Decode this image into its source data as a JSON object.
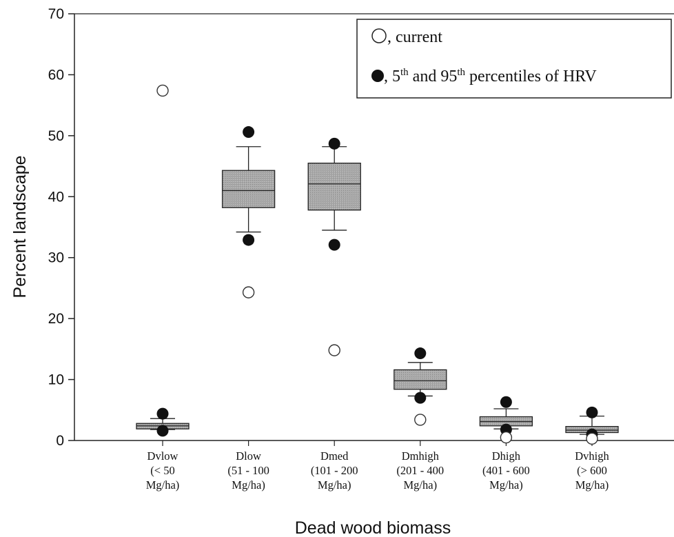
{
  "chart_data": {
    "type": "box",
    "ylabel": "Percent landscape",
    "xlabel": "Dead wood biomass",
    "ylim": [
      0,
      70
    ],
    "yticks": [
      0,
      10,
      20,
      30,
      40,
      50,
      60,
      70
    ],
    "grid": false,
    "legend_position": "top-right",
    "legend": {
      "current": {
        "prefix": ", ",
        "text": "current"
      },
      "hrv": {
        "prefix": ", 5",
        "sup1": "th",
        "mid": " and 95",
        "sup2": "th",
        "suffix": " percentiles of HRV"
      }
    },
    "categories": [
      {
        "name": "Dvlow",
        "range": "(< 50",
        "unit": "Mg/ha)"
      },
      {
        "name": "Dlow",
        "range": "(51 - 100",
        "unit": "Mg/ha)"
      },
      {
        "name": "Dmed",
        "range": "(101 - 200",
        "unit": "Mg/ha)"
      },
      {
        "name": "Dmhigh",
        "range": "(201 - 400",
        "unit": "Mg/ha)"
      },
      {
        "name": "Dhigh",
        "range": "(401 - 600",
        "unit": "Mg/ha)"
      },
      {
        "name": "Dvhigh",
        "range": "(> 600",
        "unit": "Mg/ha)"
      }
    ],
    "boxes": [
      {
        "whisker_low": 1.8,
        "q1": 1.9,
        "median": 2.4,
        "q3": 2.8,
        "whisker_high": 3.6
      },
      {
        "whisker_low": 34.2,
        "q1": 38.2,
        "median": 41.0,
        "q3": 44.3,
        "whisker_high": 48.2
      },
      {
        "whisker_low": 34.5,
        "q1": 37.8,
        "median": 42.1,
        "q3": 45.5,
        "whisker_high": 48.2
      },
      {
        "whisker_low": 7.3,
        "q1": 8.4,
        "median": 9.8,
        "q3": 11.6,
        "whisker_high": 12.8
      },
      {
        "whisker_low": 1.9,
        "q1": 2.4,
        "median": 3.1,
        "q3": 3.9,
        "whisker_high": 5.2
      },
      {
        "whisker_low": 1.0,
        "q1": 1.3,
        "median": 1.7,
        "q3": 2.3,
        "whisker_high": 4.0
      }
    ],
    "percentile_5": [
      1.6,
      32.9,
      32.1,
      7.0,
      1.8,
      1.0
    ],
    "percentile_95": [
      4.4,
      50.6,
      48.7,
      14.3,
      6.3,
      4.6
    ],
    "current": [
      57.4,
      24.3,
      14.8,
      3.4,
      0.5,
      0.3
    ]
  }
}
